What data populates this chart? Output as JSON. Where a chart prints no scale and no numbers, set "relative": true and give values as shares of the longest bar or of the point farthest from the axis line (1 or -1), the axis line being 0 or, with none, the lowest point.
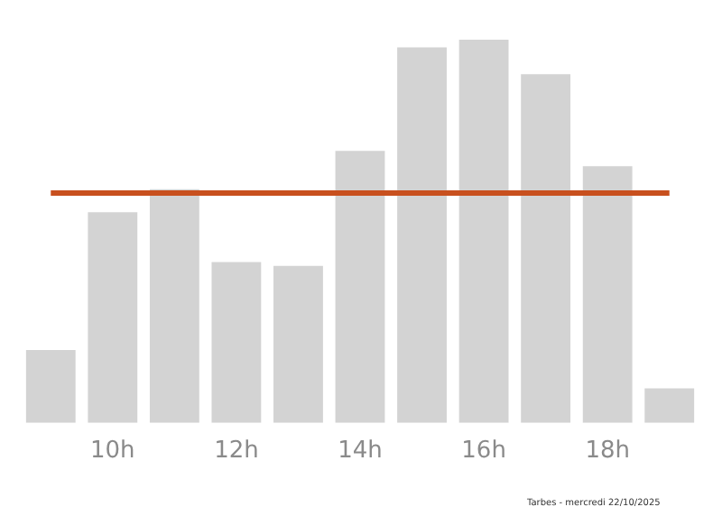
{
  "chart_data": {
    "type": "bar",
    "relative": true,
    "categories": [
      null,
      "10h",
      null,
      "12h",
      null,
      "14h",
      null,
      "16h",
      null,
      "18h",
      null
    ],
    "values": [
      0.19,
      0.55,
      0.61,
      0.42,
      0.41,
      0.71,
      0.98,
      1,
      0.91,
      0.67,
      0.09
    ],
    "color": "#d3d3d3",
    "ref_lines": [
      {
        "axis": "y",
        "value": 0.6,
        "color": "#c8501e"
      }
    ],
    "annotations": [
      "Tarbes - mercredi 22/10/2025"
    ],
    "grid": false,
    "legend": false
  }
}
